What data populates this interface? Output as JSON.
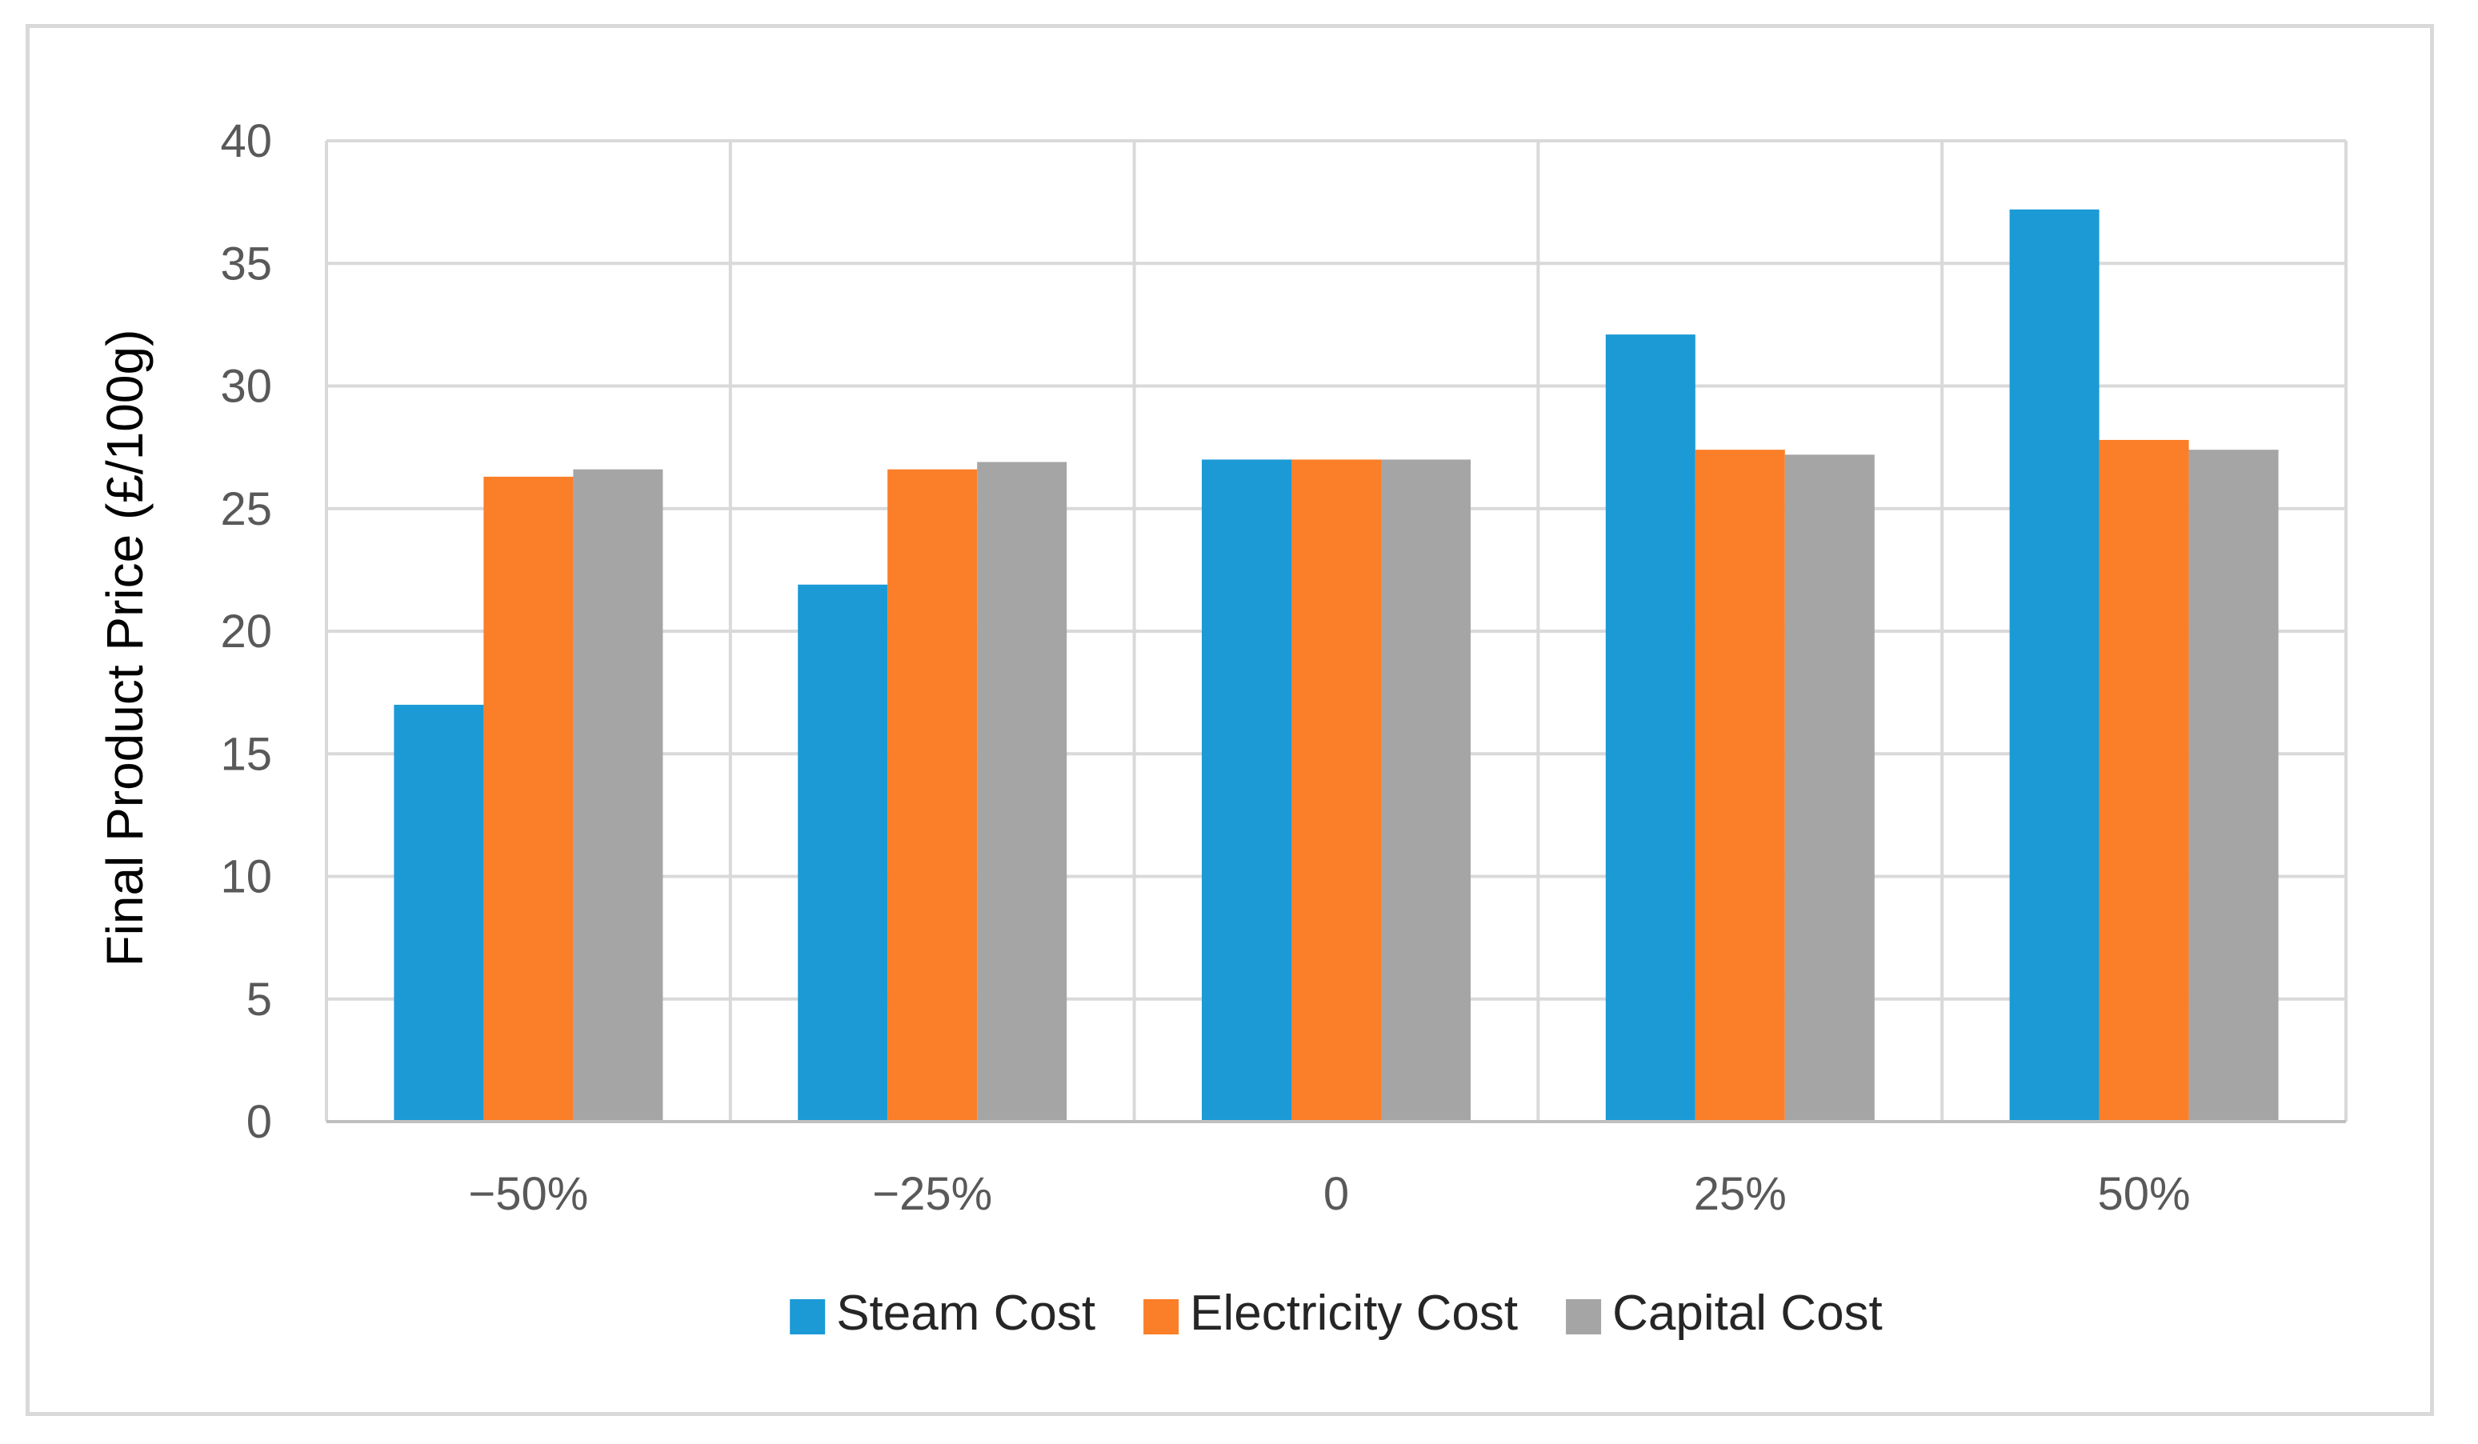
{
  "chart_data": {
    "type": "bar",
    "title": "",
    "xlabel": "",
    "ylabel": "Final Product Price (£/100g)",
    "categories": [
      "−50%",
      "−25%",
      "0",
      "25%",
      "50%"
    ],
    "ylim": [
      0,
      40
    ],
    "yticks": [
      0,
      5,
      10,
      15,
      20,
      25,
      30,
      35,
      40
    ],
    "grid": true,
    "legend_position": "bottom",
    "series": [
      {
        "name": "Steam Cost",
        "color": "#1B9AD6",
        "values": [
          17.0,
          21.9,
          27.0,
          32.1,
          37.2
        ]
      },
      {
        "name": "Electricity Cost",
        "color": "#FB7E28",
        "values": [
          26.3,
          26.6,
          27.0,
          27.4,
          27.8
        ]
      },
      {
        "name": "Capital Cost",
        "color": "#A5A5A5",
        "values": [
          26.6,
          26.9,
          27.0,
          27.2,
          27.4
        ]
      }
    ]
  }
}
